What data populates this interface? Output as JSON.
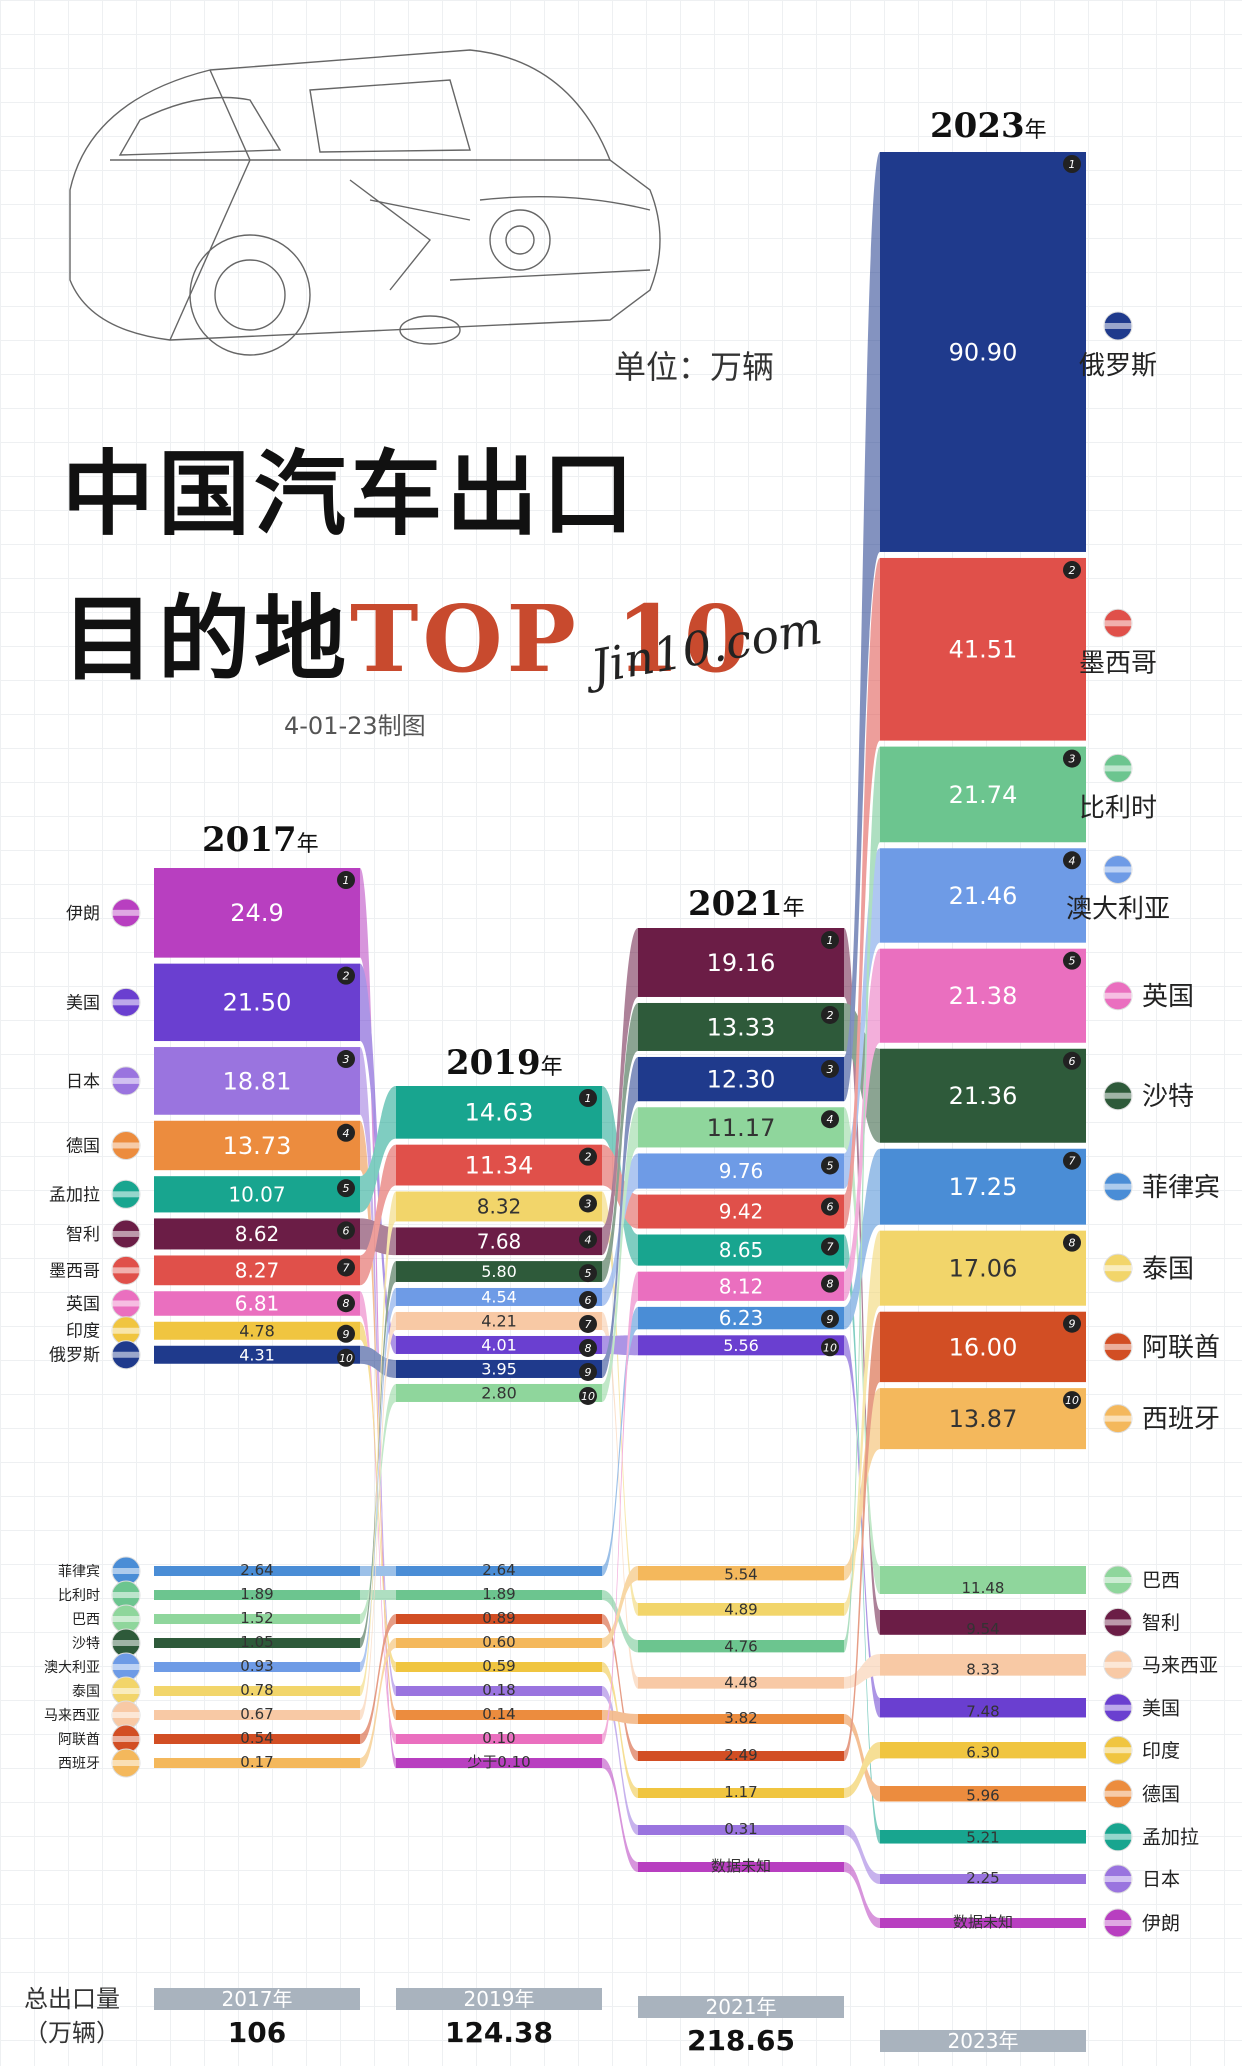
{
  "text": {
    "unit": "单位：万辆",
    "title_line1": "中国汽车出口",
    "title_line2_cn": "目的地",
    "title_line2_en": "TOP 10",
    "watermark": "Jin10.com",
    "source": "4-01-23制图",
    "year_suffix": "年",
    "total_label_line1": "总出口量",
    "total_label_line2": "（万辆）"
  },
  "colors": {
    "俄罗斯": "#1f3a8c",
    "墨西哥": "#e0504a",
    "比利时": "#6cc58f",
    "澳大利亚": "#6e9be6",
    "英国": "#ea6fbf",
    "沙特": "#2e5a3a",
    "菲律宾": "#4a8dd6",
    "泰国": "#f2d56a",
    "阿联酋": "#d24e24",
    "西班牙": "#f4b85c",
    "伊朗": "#b83fc0",
    "美国": "#6a3fd0",
    "日本": "#9a74df",
    "德国": "#ec8c3e",
    "孟加拉": "#18a58f",
    "智利": "#6b1d46",
    "印度": "#f0c540",
    "巴西": "#8fd69c",
    "马来西亚": "#f8c9a5"
  },
  "chart_data": {
    "type": "bar",
    "title": "中国汽车出口目的地TOP 10",
    "unit": "万辆",
    "years": [
      {
        "year": "2017",
        "top": [
          {
            "country": "伊朗",
            "value": "24.9"
          },
          {
            "country": "美国",
            "value": "21.50"
          },
          {
            "country": "日本",
            "value": "18.81"
          },
          {
            "country": "德国",
            "value": "13.73"
          },
          {
            "country": "孟加拉",
            "value": "10.07"
          },
          {
            "country": "智利",
            "value": "8.62"
          },
          {
            "country": "墨西哥",
            "value": "8.27"
          },
          {
            "country": "英国",
            "value": "6.81"
          },
          {
            "country": "印度",
            "value": "4.78"
          },
          {
            "country": "俄罗斯",
            "value": "4.31"
          }
        ],
        "others": [
          {
            "country": "菲律宾",
            "value": "2.64"
          },
          {
            "country": "比利时",
            "value": "1.89"
          },
          {
            "country": "巴西",
            "value": "1.52"
          },
          {
            "country": "沙特",
            "value": "1.05"
          },
          {
            "country": "澳大利亚",
            "value": "0.93"
          },
          {
            "country": "泰国",
            "value": "0.78"
          },
          {
            "country": "马来西亚",
            "value": "0.67"
          },
          {
            "country": "阿联酋",
            "value": "0.54"
          },
          {
            "country": "西班牙",
            "value": "0.17"
          }
        ]
      },
      {
        "year": "2019",
        "top": [
          {
            "country": "孟加拉",
            "value": "14.63"
          },
          {
            "country": "墨西哥",
            "value": "11.34"
          },
          {
            "country": "泰国",
            "value": "8.32"
          },
          {
            "country": "智利",
            "value": "7.68"
          },
          {
            "country": "沙特",
            "value": "5.80"
          },
          {
            "country": "澳大利亚",
            "value": "4.54"
          },
          {
            "country": "马来西亚",
            "value": "4.21"
          },
          {
            "country": "美国",
            "value": "4.01"
          },
          {
            "country": "俄罗斯",
            "value": "3.95"
          },
          {
            "country": "巴西",
            "value": "2.80"
          }
        ],
        "others": [
          {
            "country": "菲律宾",
            "value": "2.64"
          },
          {
            "country": "比利时",
            "value": "1.89"
          },
          {
            "country": "阿联酋",
            "value": "0.89"
          },
          {
            "country": "西班牙",
            "value": "0.60"
          },
          {
            "country": "印度",
            "value": "0.59"
          },
          {
            "country": "日本",
            "value": "0.18"
          },
          {
            "country": "德国",
            "value": "0.14"
          },
          {
            "country": "英国",
            "value": "0.10"
          },
          {
            "country": "伊朗",
            "value": "少于0.10"
          }
        ]
      },
      {
        "year": "2021",
        "top": [
          {
            "country": "智利",
            "value": "19.16"
          },
          {
            "country": "沙特",
            "value": "13.33"
          },
          {
            "country": "俄罗斯",
            "value": "12.30"
          },
          {
            "country": "巴西",
            "value": "11.17"
          },
          {
            "country": "澳大利亚",
            "value": "9.76"
          },
          {
            "country": "墨西哥",
            "value": "9.42"
          },
          {
            "country": "孟加拉",
            "value": "8.65"
          },
          {
            "country": "英国",
            "value": "8.12"
          },
          {
            "country": "菲律宾",
            "value": "6.23"
          },
          {
            "country": "美国",
            "value": "5.56"
          }
        ],
        "others": [
          {
            "country": "西班牙",
            "value": "5.54"
          },
          {
            "country": "泰国",
            "value": "4.89"
          },
          {
            "country": "比利时",
            "value": "4.76"
          },
          {
            "country": "马来西亚",
            "value": "4.48"
          },
          {
            "country": "德国",
            "value": "3.82"
          },
          {
            "country": "阿联酋",
            "value": "2.49"
          },
          {
            "country": "印度",
            "value": "1.17"
          },
          {
            "country": "日本",
            "value": "0.31"
          },
          {
            "country": "伊朗",
            "value": "数据未知"
          }
        ]
      },
      {
        "year": "2023",
        "top": [
          {
            "country": "俄罗斯",
            "value": "90.90"
          },
          {
            "country": "墨西哥",
            "value": "41.51"
          },
          {
            "country": "比利时",
            "value": "21.74"
          },
          {
            "country": "澳大利亚",
            "value": "21.46"
          },
          {
            "country": "英国",
            "value": "21.38"
          },
          {
            "country": "沙特",
            "value": "21.36"
          },
          {
            "country": "菲律宾",
            "value": "17.25"
          },
          {
            "country": "泰国",
            "value": "17.06"
          },
          {
            "country": "阿联酋",
            "value": "16.00"
          },
          {
            "country": "西班牙",
            "value": "13.87"
          }
        ],
        "others": [
          {
            "country": "巴西",
            "value": "11.48"
          },
          {
            "country": "智利",
            "value": "9.54"
          },
          {
            "country": "马来西亚",
            "value": "8.33"
          },
          {
            "country": "美国",
            "value": "7.48"
          },
          {
            "country": "印度",
            "value": "6.30"
          },
          {
            "country": "德国",
            "value": "5.96"
          },
          {
            "country": "孟加拉",
            "value": "5.21"
          },
          {
            "country": "日本",
            "value": "2.25"
          },
          {
            "country": "伊朗",
            "value": "数据未知"
          }
        ]
      }
    ],
    "totals": [
      {
        "label": "2017年",
        "value": "106"
      },
      {
        "label": "2019年",
        "value": "124.38"
      },
      {
        "label": "2021年",
        "value": "218.65"
      },
      {
        "label": "2023年",
        "value": ""
      }
    ]
  }
}
